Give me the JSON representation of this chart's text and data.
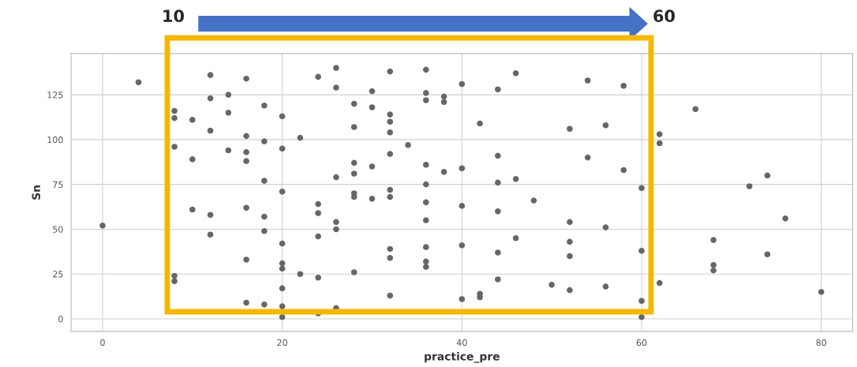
{
  "chart_data": {
    "type": "scatter",
    "xlabel": "practice_pre",
    "ylabel": "Sn",
    "annotations": [
      "10",
      "60"
    ],
    "xlim": [
      -3.5,
      83.5
    ],
    "xticks": [
      0,
      20,
      40,
      60,
      80
    ],
    "ylim": [
      -7,
      148
    ],
    "yticks": [
      0,
      25,
      50,
      75,
      100,
      125
    ],
    "grid": true,
    "marker": "circle",
    "series": [
      {
        "color": "#666666",
        "x": [
          0,
          4,
          8,
          8,
          8,
          8,
          8,
          10,
          10,
          10,
          12,
          12,
          12,
          12,
          12,
          14,
          14,
          14,
          16,
          16,
          16,
          16,
          16,
          16,
          16,
          18,
          18,
          18,
          18,
          18,
          18,
          20,
          20,
          20,
          20,
          20,
          20,
          20,
          20,
          20,
          22,
          22,
          24,
          24,
          24,
          24,
          24,
          24,
          26,
          26,
          26,
          26,
          26,
          26,
          28,
          28,
          28,
          28,
          28,
          28,
          28,
          30,
          30,
          30,
          30,
          32,
          32,
          32,
          32,
          32,
          32,
          32,
          32,
          32,
          32,
          34,
          36,
          36,
          36,
          36,
          36,
          36,
          36,
          36,
          36,
          36,
          38,
          38,
          38,
          40,
          40,
          40,
          40,
          40,
          42,
          42,
          42,
          44,
          44,
          44,
          44,
          44,
          44,
          46,
          46,
          46,
          48,
          50,
          52,
          52,
          52,
          52,
          52,
          54,
          54,
          56,
          56,
          56,
          58,
          58,
          60,
          60,
          60,
          60,
          62,
          62,
          62,
          66,
          68,
          68,
          68,
          72,
          74,
          74,
          76,
          80
        ],
        "values": [
          52,
          132,
          116,
          112,
          96,
          24,
          21,
          111,
          89,
          61,
          136,
          123,
          105,
          58,
          47,
          125,
          115,
          94,
          134,
          102,
          93,
          88,
          62,
          33,
          9,
          119,
          99,
          77,
          57,
          49,
          8,
          113,
          95,
          71,
          42,
          31,
          28,
          17,
          7,
          1,
          101,
          25,
          135,
          64,
          59,
          46,
          23,
          3,
          140,
          129,
          79,
          54,
          50,
          6,
          120,
          107,
          87,
          81,
          70,
          68,
          26,
          127,
          118,
          85,
          67,
          138,
          114,
          110,
          104,
          92,
          72,
          68,
          39,
          34,
          13,
          97,
          139,
          126,
          122,
          86,
          75,
          65,
          55,
          40,
          32,
          29,
          124,
          121,
          82,
          131,
          84,
          63,
          41,
          11,
          109,
          14,
          12,
          128,
          91,
          76,
          60,
          37,
          22,
          137,
          78,
          45,
          66,
          19,
          106,
          54,
          43,
          35,
          16,
          133,
          90,
          108,
          51,
          18,
          130,
          83,
          73,
          38,
          10,
          1,
          103,
          98,
          20,
          117,
          44,
          30,
          27,
          74,
          80,
          36,
          56,
          15
        ]
      }
    ]
  }
}
